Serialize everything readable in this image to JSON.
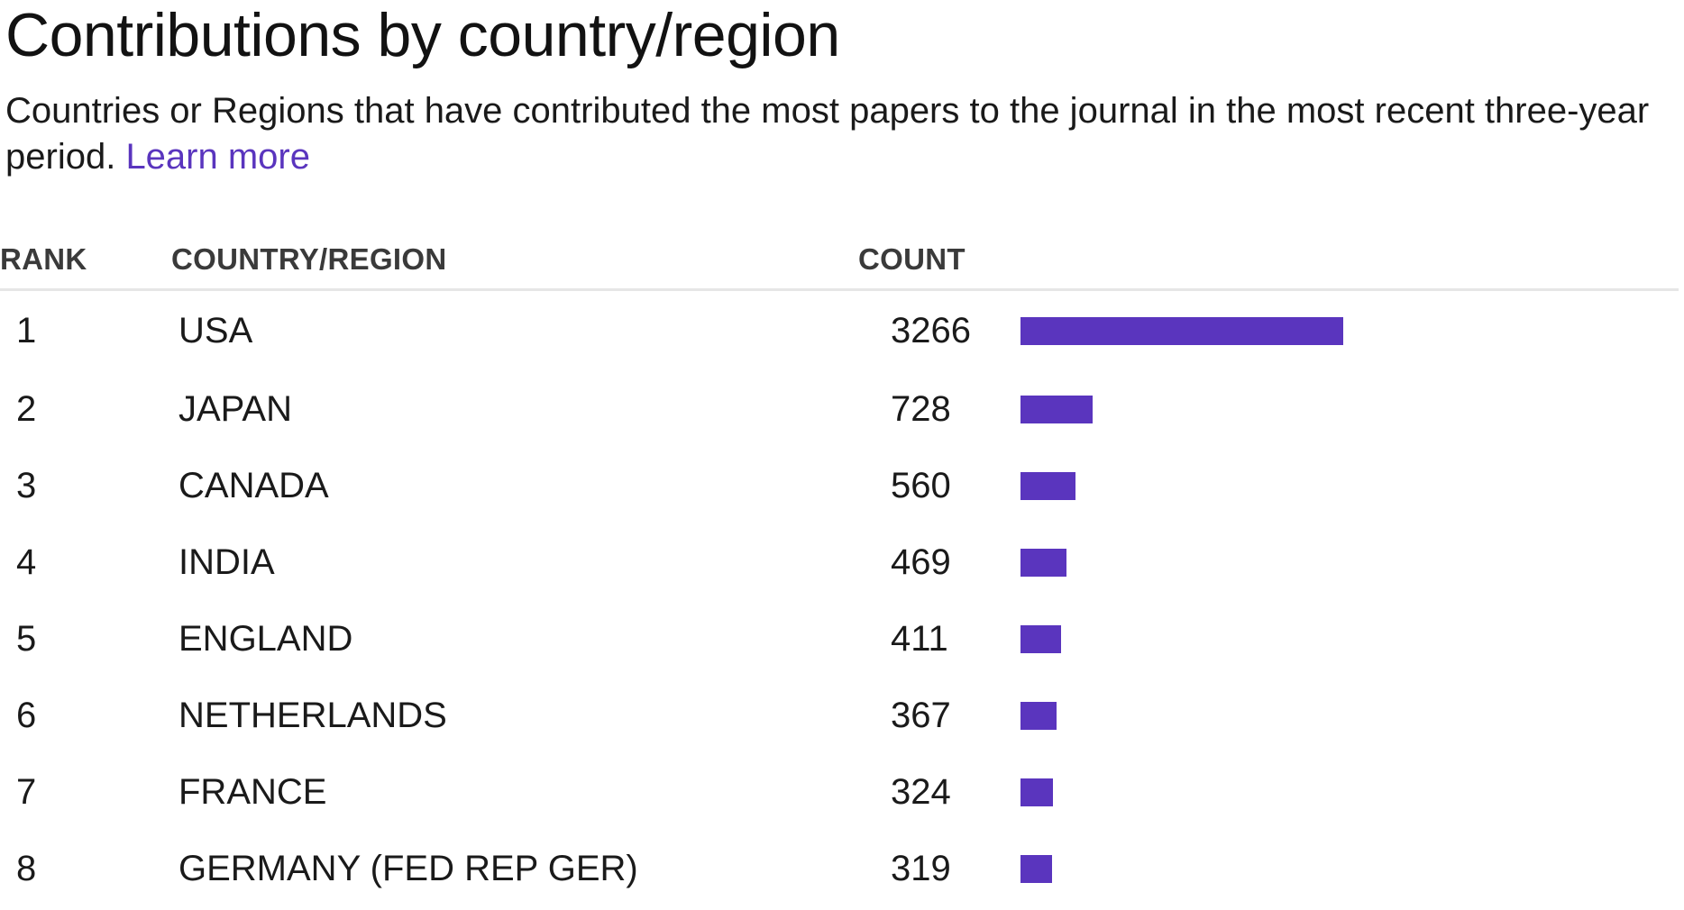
{
  "header": {
    "title": "Contributions by country/region",
    "description": "Countries or Regions that have contributed the most papers to the journal in the most recent three-year period.",
    "learn_more": "Learn more"
  },
  "table": {
    "columns": {
      "rank": "RANK",
      "country": "COUNTRY/REGION",
      "count": "COUNT"
    },
    "bar_color": "#5a35be",
    "rows": [
      {
        "rank": "1",
        "country": "USA",
        "count": 3266
      },
      {
        "rank": "2",
        "country": "JAPAN",
        "count": 728
      },
      {
        "rank": "3",
        "country": "CANADA",
        "count": 560
      },
      {
        "rank": "4",
        "country": "INDIA",
        "count": 469
      },
      {
        "rank": "5",
        "country": "ENGLAND",
        "count": 411
      },
      {
        "rank": "6",
        "country": "NETHERLANDS",
        "count": 367
      },
      {
        "rank": "7",
        "country": "FRANCE",
        "count": 324
      },
      {
        "rank": "8",
        "country": "GERMANY (FED REP GER)",
        "count": 319
      }
    ]
  }
}
